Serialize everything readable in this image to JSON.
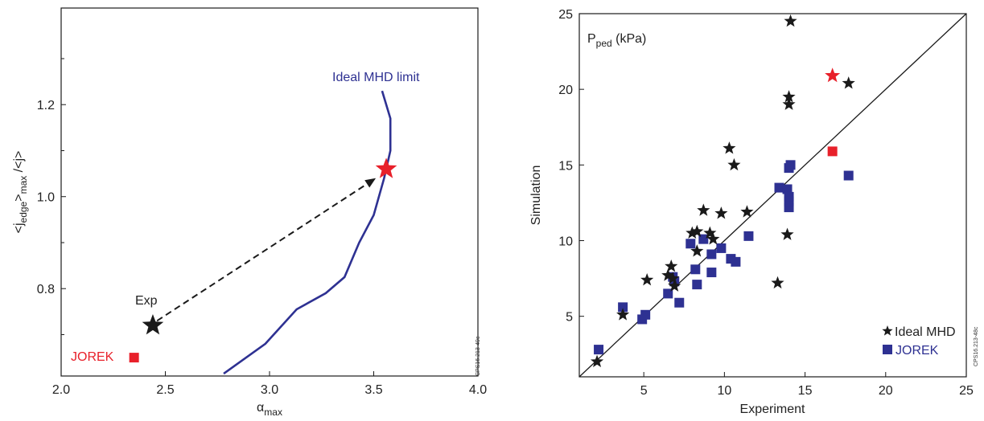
{
  "colors": {
    "ink": "#1a1a1a",
    "mhd": "#2e3192",
    "red": "#e8202a",
    "blue": "#2e3192"
  },
  "chart_data": [
    {
      "type": "line",
      "xlabel_main": "α",
      "xlabel_sub": "max",
      "ylabel_parts": [
        "<j",
        "edge",
        ">",
        "max",
        " /<j>"
      ],
      "xlim": [
        2.0,
        4.0
      ],
      "ylim": [
        0.61,
        1.41
      ],
      "xticks": [
        "2.0",
        "2.5",
        "3.0",
        "3.5",
        "4.0"
      ],
      "yticks": [
        {
          "v": 0.8,
          "label": "0.8"
        },
        {
          "v": 1.0,
          "label": "1.0"
        },
        {
          "v": 1.2,
          "label": "1.2"
        }
      ],
      "series": [
        {
          "name": "Ideal MHD limit",
          "x": [
            2.78,
            2.98,
            3.13,
            3.27,
            3.36,
            3.43,
            3.5,
            3.55,
            3.58,
            3.58,
            3.54
          ],
          "y": [
            0.615,
            0.68,
            0.755,
            0.79,
            0.825,
            0.9,
            0.96,
            1.04,
            1.1,
            1.17,
            1.23
          ]
        }
      ],
      "points": [
        {
          "label": "Exp",
          "x": 2.44,
          "y": 0.72,
          "marker": "star",
          "color": "#1a1a1a"
        },
        {
          "label": "",
          "x": 3.56,
          "y": 1.06,
          "marker": "star",
          "color": "#e8202a"
        },
        {
          "label": "JOREK",
          "x": 2.35,
          "y": 0.65,
          "marker": "square",
          "color": "#e8202a"
        }
      ],
      "arrow": {
        "from": [
          2.46,
          0.73
        ],
        "to": [
          3.51,
          1.04
        ]
      },
      "annotations": [
        "Ideal MHD limit",
        "Exp",
        "JOREK"
      ],
      "side_code": "CPS16.213-49c"
    },
    {
      "type": "scatter",
      "title_main": "P",
      "title_sub": "ped",
      "title_unit": " (kPa)",
      "xlabel": "Experiment",
      "ylabel": "Simulation",
      "xlim": [
        1,
        25
      ],
      "ylim": [
        1,
        25
      ],
      "xticks": [
        "5",
        "10",
        "15",
        "20",
        "25"
      ],
      "yticks": [
        "5",
        "10",
        "15",
        "20",
        "25"
      ],
      "diagonal": true,
      "series": [
        {
          "name": "Ideal MHD",
          "marker": "star",
          "color": "#1a1a1a",
          "points": [
            [
              2.1,
              2.0
            ],
            [
              3.7,
              5.1
            ],
            [
              5.2,
              7.4
            ],
            [
              6.5,
              7.7
            ],
            [
              6.7,
              8.3
            ],
            [
              6.8,
              7.5
            ],
            [
              6.9,
              7.0
            ],
            [
              8.0,
              10.5
            ],
            [
              8.3,
              10.6
            ],
            [
              8.3,
              9.3
            ],
            [
              8.7,
              12.0
            ],
            [
              9.1,
              10.5
            ],
            [
              9.3,
              10.1
            ],
            [
              9.8,
              11.8
            ],
            [
              10.3,
              16.1
            ],
            [
              10.6,
              15.0
            ],
            [
              11.4,
              11.9
            ],
            [
              13.3,
              7.2
            ],
            [
              13.9,
              10.4
            ],
            [
              14.0,
              19.0
            ],
            [
              14.0,
              19.5
            ],
            [
              14.1,
              24.5
            ],
            [
              17.7,
              20.4
            ]
          ]
        },
        {
          "name": "JOREK",
          "marker": "square",
          "color": "#2e3192",
          "points": [
            [
              2.2,
              2.8
            ],
            [
              3.7,
              5.6
            ],
            [
              4.9,
              4.8
            ],
            [
              5.1,
              5.1
            ],
            [
              6.5,
              6.5
            ],
            [
              6.8,
              7.6
            ],
            [
              6.9,
              7.3
            ],
            [
              7.2,
              5.9
            ],
            [
              7.9,
              9.8
            ],
            [
              8.2,
              8.1
            ],
            [
              8.3,
              7.1
            ],
            [
              8.7,
              10.1
            ],
            [
              9.2,
              7.9
            ],
            [
              9.2,
              9.1
            ],
            [
              9.8,
              9.5
            ],
            [
              10.4,
              8.8
            ],
            [
              10.7,
              8.6
            ],
            [
              11.5,
              10.3
            ],
            [
              13.4,
              13.5
            ],
            [
              13.9,
              13.4
            ],
            [
              14.0,
              12.2
            ],
            [
              14.0,
              12.6
            ],
            [
              14.0,
              12.9
            ],
            [
              14.0,
              14.8
            ],
            [
              14.1,
              15.0
            ],
            [
              17.7,
              14.3
            ]
          ]
        },
        {
          "name": "",
          "marker": "star",
          "color": "#e8202a",
          "points": [
            [
              16.7,
              20.9
            ]
          ]
        },
        {
          "name": "",
          "marker": "square",
          "color": "#e8202a",
          "points": [
            [
              16.7,
              15.9
            ]
          ]
        }
      ],
      "legend": [
        "Ideal MHD",
        "JOREK"
      ],
      "legend_placement": "bottom-right",
      "side_code": "CPS16.213-48c"
    }
  ]
}
